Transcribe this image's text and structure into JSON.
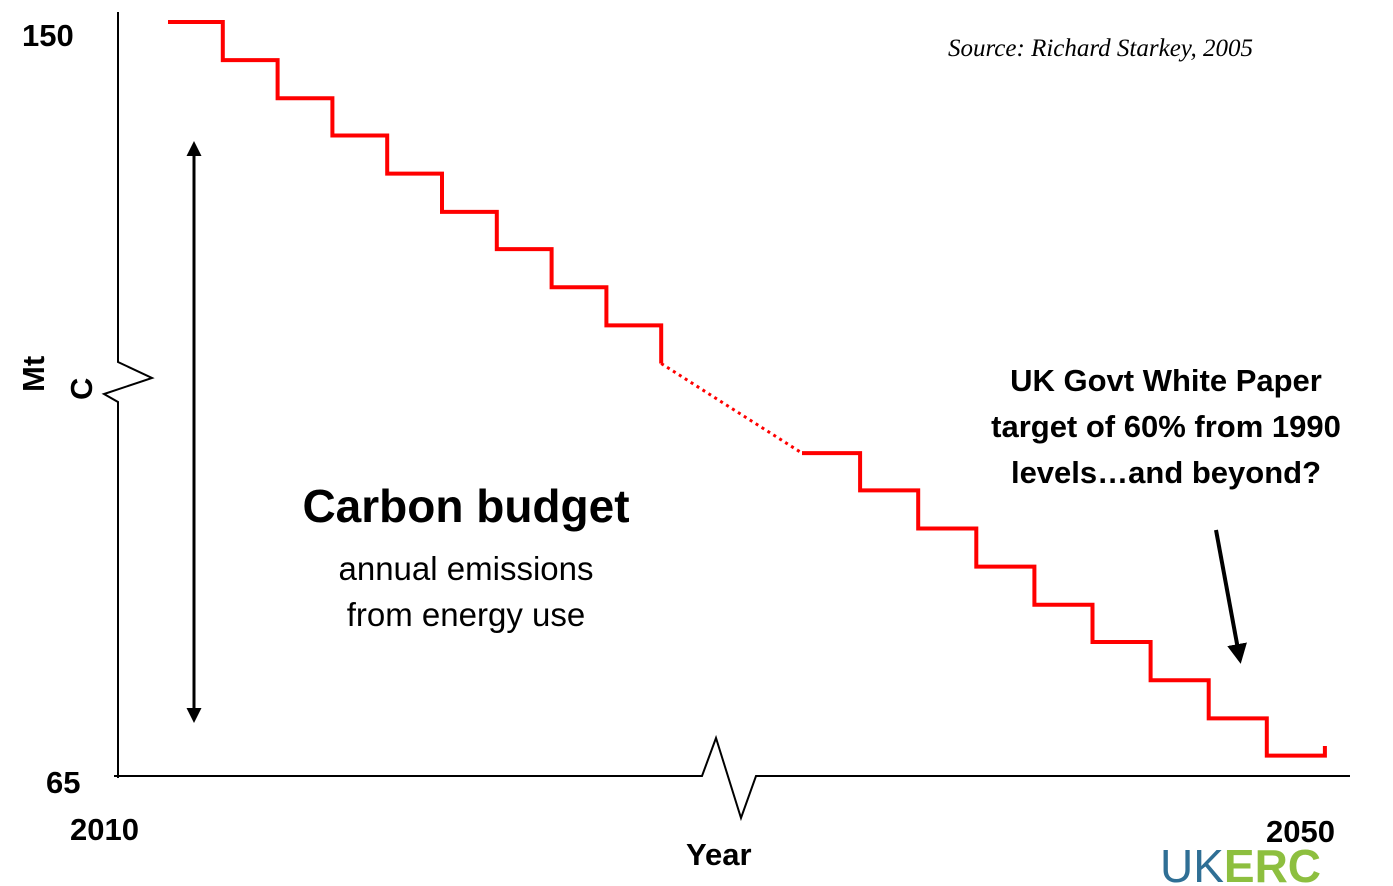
{
  "chart_data": {
    "type": "line",
    "title": "",
    "source": "Source: Richard Starkey, 2005",
    "xlabel": "Year",
    "ylabel_line1": "Mt",
    "ylabel_line2": "C",
    "xlim": [
      2010,
      2050
    ],
    "ylim": [
      65,
      150
    ],
    "x_tick_labels": [
      "2010",
      "2050"
    ],
    "y_tick_labels": [
      "150",
      "65"
    ],
    "axis_breaks": [
      "x",
      "y"
    ],
    "grid": false,
    "legend": "none",
    "series": [
      {
        "style": "step",
        "color": "#ff0000",
        "segment": "solid",
        "steps": [
          150,
          145.7,
          141.4,
          137.2,
          132.9,
          128.6,
          124.4,
          120.1,
          115.8
        ]
      },
      {
        "style": "line",
        "color": "#ff0000",
        "segment": "dotted",
        "gap": [
          115.8,
          101.4
        ]
      },
      {
        "style": "step",
        "color": "#ff0000",
        "segment": "solid",
        "steps": [
          101.4,
          97.2,
          92.9,
          88.6,
          84.3,
          80.1,
          75.8,
          71.5,
          67.3
        ]
      }
    ],
    "annotations": {
      "budget_title": "Carbon budget",
      "budget_sub_line1": "annual emissions",
      "budget_sub_line2": "from energy use",
      "target_line1": "UK Govt White Paper",
      "target_line2": "target of 60% from 1990",
      "target_line3": "levels…and beyond?"
    }
  },
  "logo": {
    "part1": "UK",
    "part2": "ERC",
    "color1": "#2f6f95",
    "color2": "#8dbf3f"
  }
}
